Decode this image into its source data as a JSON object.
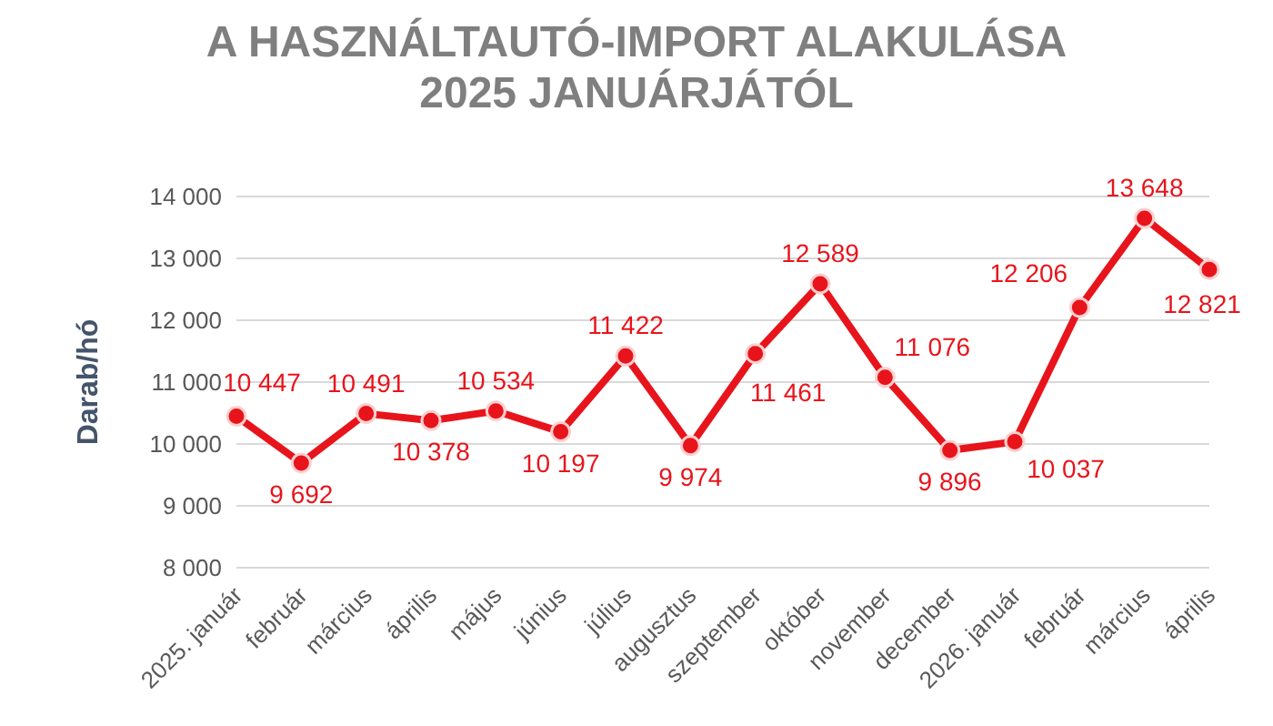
{
  "chart_data": {
    "type": "line",
    "title": "A HASZNÁLTAUTÓ-IMPORT ALAKULÁSA 2025 JANUÁRJÁTÓL",
    "ylabel": "Darab/hó",
    "categories": [
      "2025. január",
      "február",
      "március",
      "április",
      "május",
      "június",
      "július",
      "augusztus",
      "szeptember",
      "október",
      "november",
      "december",
      "2026. január",
      "február",
      "március",
      "április"
    ],
    "series": [
      {
        "color": "#e8141b",
        "values": [
          10447,
          9692,
          10491,
          10378,
          10534,
          10197,
          11422,
          9974,
          11461,
          12589,
          11076,
          9896,
          10037,
          12206,
          13648,
          12821
        ],
        "value_labels": [
          "10 447",
          "9 692",
          "10 491",
          "10 378",
          "10 534",
          "10 197",
          "11 422",
          "9 974",
          "11 461",
          "12 589",
          "11 076",
          "9 896",
          "10 037",
          "12 206",
          "13 648",
          "12 821"
        ]
      }
    ],
    "ylim": [
      8000,
      14000
    ],
    "yticks": [
      {
        "value": 8000,
        "label": "8 000"
      },
      {
        "value": 9000,
        "label": "9 000"
      },
      {
        "value": 10000,
        "label": "10 000"
      },
      {
        "value": 11000,
        "label": "11 000"
      },
      {
        "value": 12000,
        "label": "12 000"
      },
      {
        "value": 13000,
        "label": "13 000"
      },
      {
        "value": 14000,
        "label": "14 000"
      }
    ],
    "grid": "y",
    "marker": "circle",
    "line_style": "solid",
    "legend": false
  }
}
